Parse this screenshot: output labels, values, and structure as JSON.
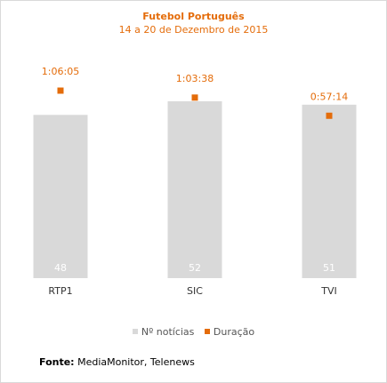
{
  "title": "Futebol Português",
  "subtitle": "14 a 20 de Dezembro de 2015",
  "colors": {
    "bars": "#d9d9d9",
    "duration": "#e46c0a",
    "bar_label": "#ffffff"
  },
  "chart_data": {
    "type": "bar",
    "categories": [
      "RTP1",
      "SIC",
      "TVI"
    ],
    "series": [
      {
        "name": "Nº notícias",
        "values": [
          48,
          52,
          51
        ],
        "type": "bar"
      },
      {
        "name": "Duração",
        "values": [
          "1:06:05",
          "1:03:38",
          "0:57:14"
        ],
        "seconds": [
          3965,
          3818,
          3434
        ],
        "type": "scatter"
      }
    ],
    "legend_position": "bottom",
    "grid": false
  },
  "source": {
    "label": "Fonte:",
    "text": " MediaMonitor, Telenews"
  }
}
